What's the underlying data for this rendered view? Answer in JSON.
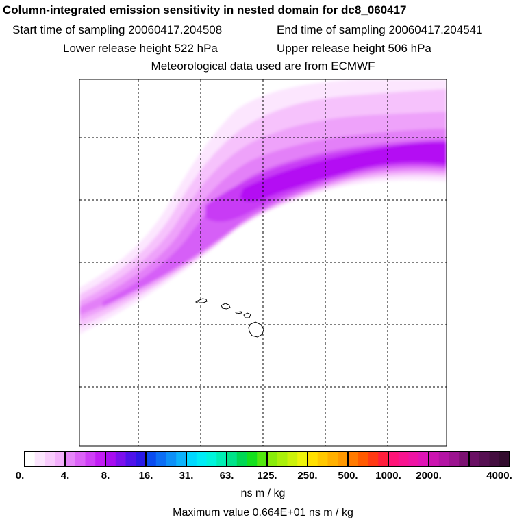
{
  "header": {
    "title": "Column-integrated emission sensitivity in nested domain for dc8_060417",
    "start_label": "Start time of sampling 20060417.204508",
    "end_label": "End time of sampling 20060417.204541",
    "lower_label": "Lower release height  522 hPa",
    "upper_label": "Upper release height  506 hPa",
    "met_label": "Meteorological data used are from ECMWF"
  },
  "colorbar": {
    "ticks": [
      "0.",
      "4.",
      "8.",
      "16.",
      "31.",
      "63.",
      "125.",
      "250.",
      "500.",
      "1000.",
      "2000.",
      "4000."
    ],
    "colors": [
      [
        "#ffffff",
        "#fce6fe",
        "#f9ccfd",
        "#f4b0fc"
      ],
      [
        "#e686f9",
        "#dc63f7",
        "#cf3ff6",
        "#c21cf4"
      ],
      [
        "#a80df0",
        "#7c10ed",
        "#4f13ea",
        "#2a19e6"
      ],
      [
        "#0a4cf0",
        "#0c6ef5",
        "#0d90f8",
        "#0cb2fb"
      ],
      [
        "#00d8ff",
        "#00ecf6",
        "#00f4dc",
        "#00eeb4"
      ],
      [
        "#00e38a",
        "#00d854",
        "#14e01e",
        "#52e80e"
      ],
      [
        "#88ec0a",
        "#aaf00a",
        "#ccf20a",
        "#eef40a"
      ],
      [
        "#ffe000",
        "#ffc800",
        "#ffb000",
        "#ff9800"
      ],
      [
        "#ff7a00",
        "#ff5a00",
        "#ff3a14",
        "#ff1e3c"
      ],
      [
        "#ff1478",
        "#f81490",
        "#ee14a4",
        "#e014b6"
      ],
      [
        "#cc14b0",
        "#b414a4",
        "#9c1490",
        "#7c1272"
      ],
      [
        "#6a1064",
        "#561052",
        "#440e40",
        "#320c2e"
      ]
    ],
    "units": "ns m / kg"
  },
  "footer": {
    "max_label": "Maximum value  0.664E+01 ns m / kg"
  },
  "map": {
    "plume_colors": [
      "#fce6fe",
      "#f6c2fc",
      "#eea2fa",
      "#e380f8",
      "#d65ef7",
      "#c83af5",
      "#b40ef3"
    ]
  }
}
